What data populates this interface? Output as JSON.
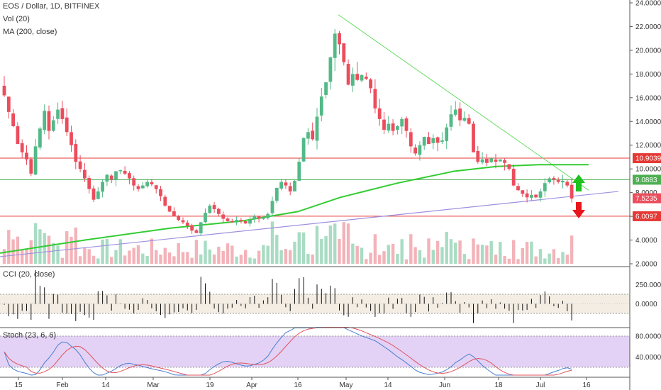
{
  "header": {
    "symbol": "EOS / Dollar, 1D, BITFINEX",
    "indicator_vol": "Vol (20)",
    "indicator_ma": "MA (200, close)"
  },
  "panes": {
    "cci_label": "CCI (20, close)",
    "stoch_label": "Stoch (23, 6, 6)"
  },
  "colors": {
    "up": "#53b987",
    "down": "#eb4d5c",
    "resistance": "#e53935",
    "support": "#4caf50",
    "ma": "#33cc33",
    "trend_down": "#66dd66",
    "trend_up": "#9f8fe0",
    "stoch_k": "#4a7fd1",
    "stoch_d": "#e0535e"
  },
  "chart_data": {
    "type": "candlestick",
    "symbol": "EOS / Dollar",
    "interval": "1D",
    "exchange": "BITFINEX",
    "price_axis_ticks": [
      2,
      4,
      6,
      8,
      10,
      12,
      14,
      16,
      18,
      20,
      22,
      24
    ],
    "price_axis_labels": [
      "2.0000",
      "4.0000",
      "6.0000",
      "8.0000",
      "10.0000",
      "12.0000",
      "14.0000",
      "16.0000",
      "18.0000",
      "20.0000",
      "22.0000",
      "24.0000"
    ],
    "ylim": [
      2,
      24
    ],
    "time_axis_labels": [
      "15",
      "Feb",
      "14",
      "Mar",
      "19",
      "Apr",
      "16",
      "May",
      "14",
      "Jun",
      "18",
      "Jul",
      "16"
    ],
    "horizontal_levels": [
      {
        "value": 10.9039,
        "label": "10.9039",
        "color": "#e53935"
      },
      {
        "value": 9.0883,
        "label": "9.0883",
        "color": "#4caf50"
      },
      {
        "value": 6.0097,
        "label": "6.0097",
        "color": "#e53935"
      }
    ],
    "last_price": {
      "value": 7.5235,
      "label": "7.5235"
    },
    "closes": [
      16.2,
      14.8,
      13.6,
      12.1,
      11.4,
      10.8,
      9.6,
      11.9,
      13.4,
      14.9,
      13.2,
      14.1,
      15.0,
      14.2,
      13.1,
      12.0,
      10.6,
      10.0,
      9.2,
      8.3,
      7.4,
      8.1,
      8.9,
      9.5,
      9.1,
      9.8,
      9.9,
      9.6,
      9.2,
      8.6,
      8.3,
      8.6,
      8.9,
      8.7,
      8.3,
      7.7,
      6.9,
      6.4,
      6.0,
      5.7,
      5.5,
      5.2,
      4.8,
      4.6,
      5.5,
      6.3,
      6.9,
      6.6,
      6.2,
      5.8,
      5.6,
      5.5,
      5.7,
      5.6,
      5.4,
      5.7,
      6.0,
      5.8,
      5.9,
      6.2,
      7.3,
      8.4,
      8.9,
      8.6,
      8.1,
      9.0,
      10.6,
      12.6,
      13.1,
      12.5,
      14.4,
      16.1,
      17.3,
      19.4,
      21.4,
      20.5,
      19.0,
      17.1,
      18.0,
      17.5,
      17.9,
      17.6,
      16.8,
      15.1,
      14.2,
      13.3,
      13.8,
      13.2,
      13.6,
      14.2,
      13.2,
      11.9,
      11.3,
      12.0,
      12.7,
      12.1,
      12.6,
      12.2,
      12.4,
      13.5,
      14.6,
      15.0,
      14.1,
      14.3,
      13.8,
      11.4,
      10.6,
      10.8,
      10.5,
      10.9,
      10.6,
      10.8,
      10.5,
      10.0,
      8.6,
      8.2,
      7.9,
      7.6,
      7.8,
      7.6,
      8.1,
      8.8,
      9.2,
      9.1,
      8.9,
      9.0,
      8.6,
      7.5
    ]
  },
  "cci": {
    "axis_labels": [
      "250.0000",
      "0.0000"
    ],
    "axis_values": [
      250,
      0
    ]
  },
  "stoch": {
    "axis_labels": [
      "80.0000",
      "40.0000"
    ],
    "axis_values": [
      80,
      40
    ]
  }
}
